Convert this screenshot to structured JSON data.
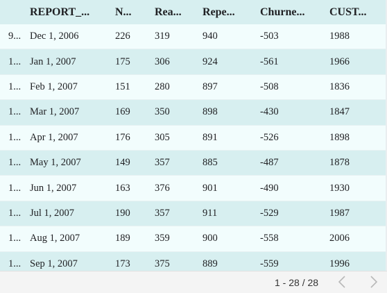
{
  "table": {
    "columns": [
      "",
      "REPORT_...",
      "N...",
      "Rea...",
      "Repe...",
      "Churne...",
      "CUST..."
    ],
    "rows": [
      [
        "9...",
        "Dec 1, 2006",
        "226",
        "319",
        "940",
        "-503",
        "1988"
      ],
      [
        "1...",
        "Jan 1, 2007",
        "175",
        "306",
        "924",
        "-561",
        "1966"
      ],
      [
        "1...",
        "Feb 1, 2007",
        "151",
        "280",
        "897",
        "-508",
        "1836"
      ],
      [
        "1...",
        "Mar 1, 2007",
        "169",
        "350",
        "898",
        "-430",
        "1847"
      ],
      [
        "1...",
        "Apr 1, 2007",
        "176",
        "305",
        "891",
        "-526",
        "1898"
      ],
      [
        "1...",
        "May 1, 2007",
        "149",
        "357",
        "885",
        "-487",
        "1878"
      ],
      [
        "1...",
        "Jun 1, 2007",
        "163",
        "376",
        "901",
        "-490",
        "1930"
      ],
      [
        "1...",
        "Jul 1, 2007",
        "190",
        "357",
        "911",
        "-529",
        "1987"
      ],
      [
        "1...",
        "Aug 1, 2007",
        "189",
        "359",
        "900",
        "-558",
        "2006"
      ],
      [
        "1...",
        "Sep 1, 2007",
        "173",
        "375",
        "889",
        "-559",
        "1996"
      ]
    ]
  },
  "pagination": {
    "range_label": "1 - 28 / 28",
    "prev_icon": "chevron-left-icon",
    "next_icon": "chevron-right-icon"
  },
  "colors": {
    "header_bg": "#d7eff0",
    "row_even_bg": "#d7eff0",
    "row_odd_bg": "#f2fdfd",
    "footer_bg": "#f4f4f4"
  }
}
